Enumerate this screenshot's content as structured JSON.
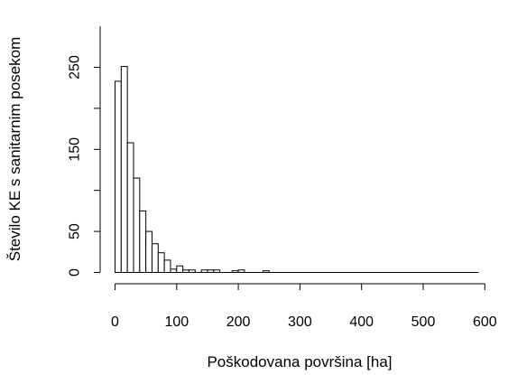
{
  "chart_data": {
    "type": "bar",
    "title": "",
    "xlabel": "Poškodovana površina [ha]",
    "ylabel": "Število KE s sanitarnim posekom",
    "xlim": [
      0,
      600
    ],
    "ylim": [
      0,
      300
    ],
    "x_ticks": [
      "0",
      "100",
      "200",
      "300",
      "400",
      "500",
      "600"
    ],
    "y_ticks": [
      "0",
      "50",
      "150",
      "250"
    ],
    "x_tick_values": [
      0,
      100,
      200,
      300,
      400,
      500,
      600
    ],
    "y_tick_values": [
      0,
      50,
      100,
      150,
      200,
      250
    ],
    "bin_width": 10,
    "x_range": [
      0,
      590
    ],
    "bins": [
      {
        "x0": 0,
        "x1": 10,
        "count": 233
      },
      {
        "x0": 10,
        "x1": 20,
        "count": 251
      },
      {
        "x0": 20,
        "x1": 30,
        "count": 158
      },
      {
        "x0": 30,
        "x1": 40,
        "count": 115
      },
      {
        "x0": 40,
        "x1": 50,
        "count": 75
      },
      {
        "x0": 50,
        "x1": 60,
        "count": 50
      },
      {
        "x0": 60,
        "x1": 70,
        "count": 35
      },
      {
        "x0": 70,
        "x1": 80,
        "count": 24
      },
      {
        "x0": 80,
        "x1": 90,
        "count": 15
      },
      {
        "x0": 90,
        "x1": 100,
        "count": 4
      },
      {
        "x0": 100,
        "x1": 110,
        "count": 8
      },
      {
        "x0": 110,
        "x1": 120,
        "count": 3
      },
      {
        "x0": 120,
        "x1": 130,
        "count": 3
      },
      {
        "x0": 140,
        "x1": 150,
        "count": 3
      },
      {
        "x0": 150,
        "x1": 160,
        "count": 3
      },
      {
        "x0": 160,
        "x1": 170,
        "count": 3
      },
      {
        "x0": 190,
        "x1": 200,
        "count": 2
      },
      {
        "x0": 200,
        "x1": 210,
        "count": 3
      },
      {
        "x0": 240,
        "x1": 250,
        "count": 2
      }
    ]
  }
}
